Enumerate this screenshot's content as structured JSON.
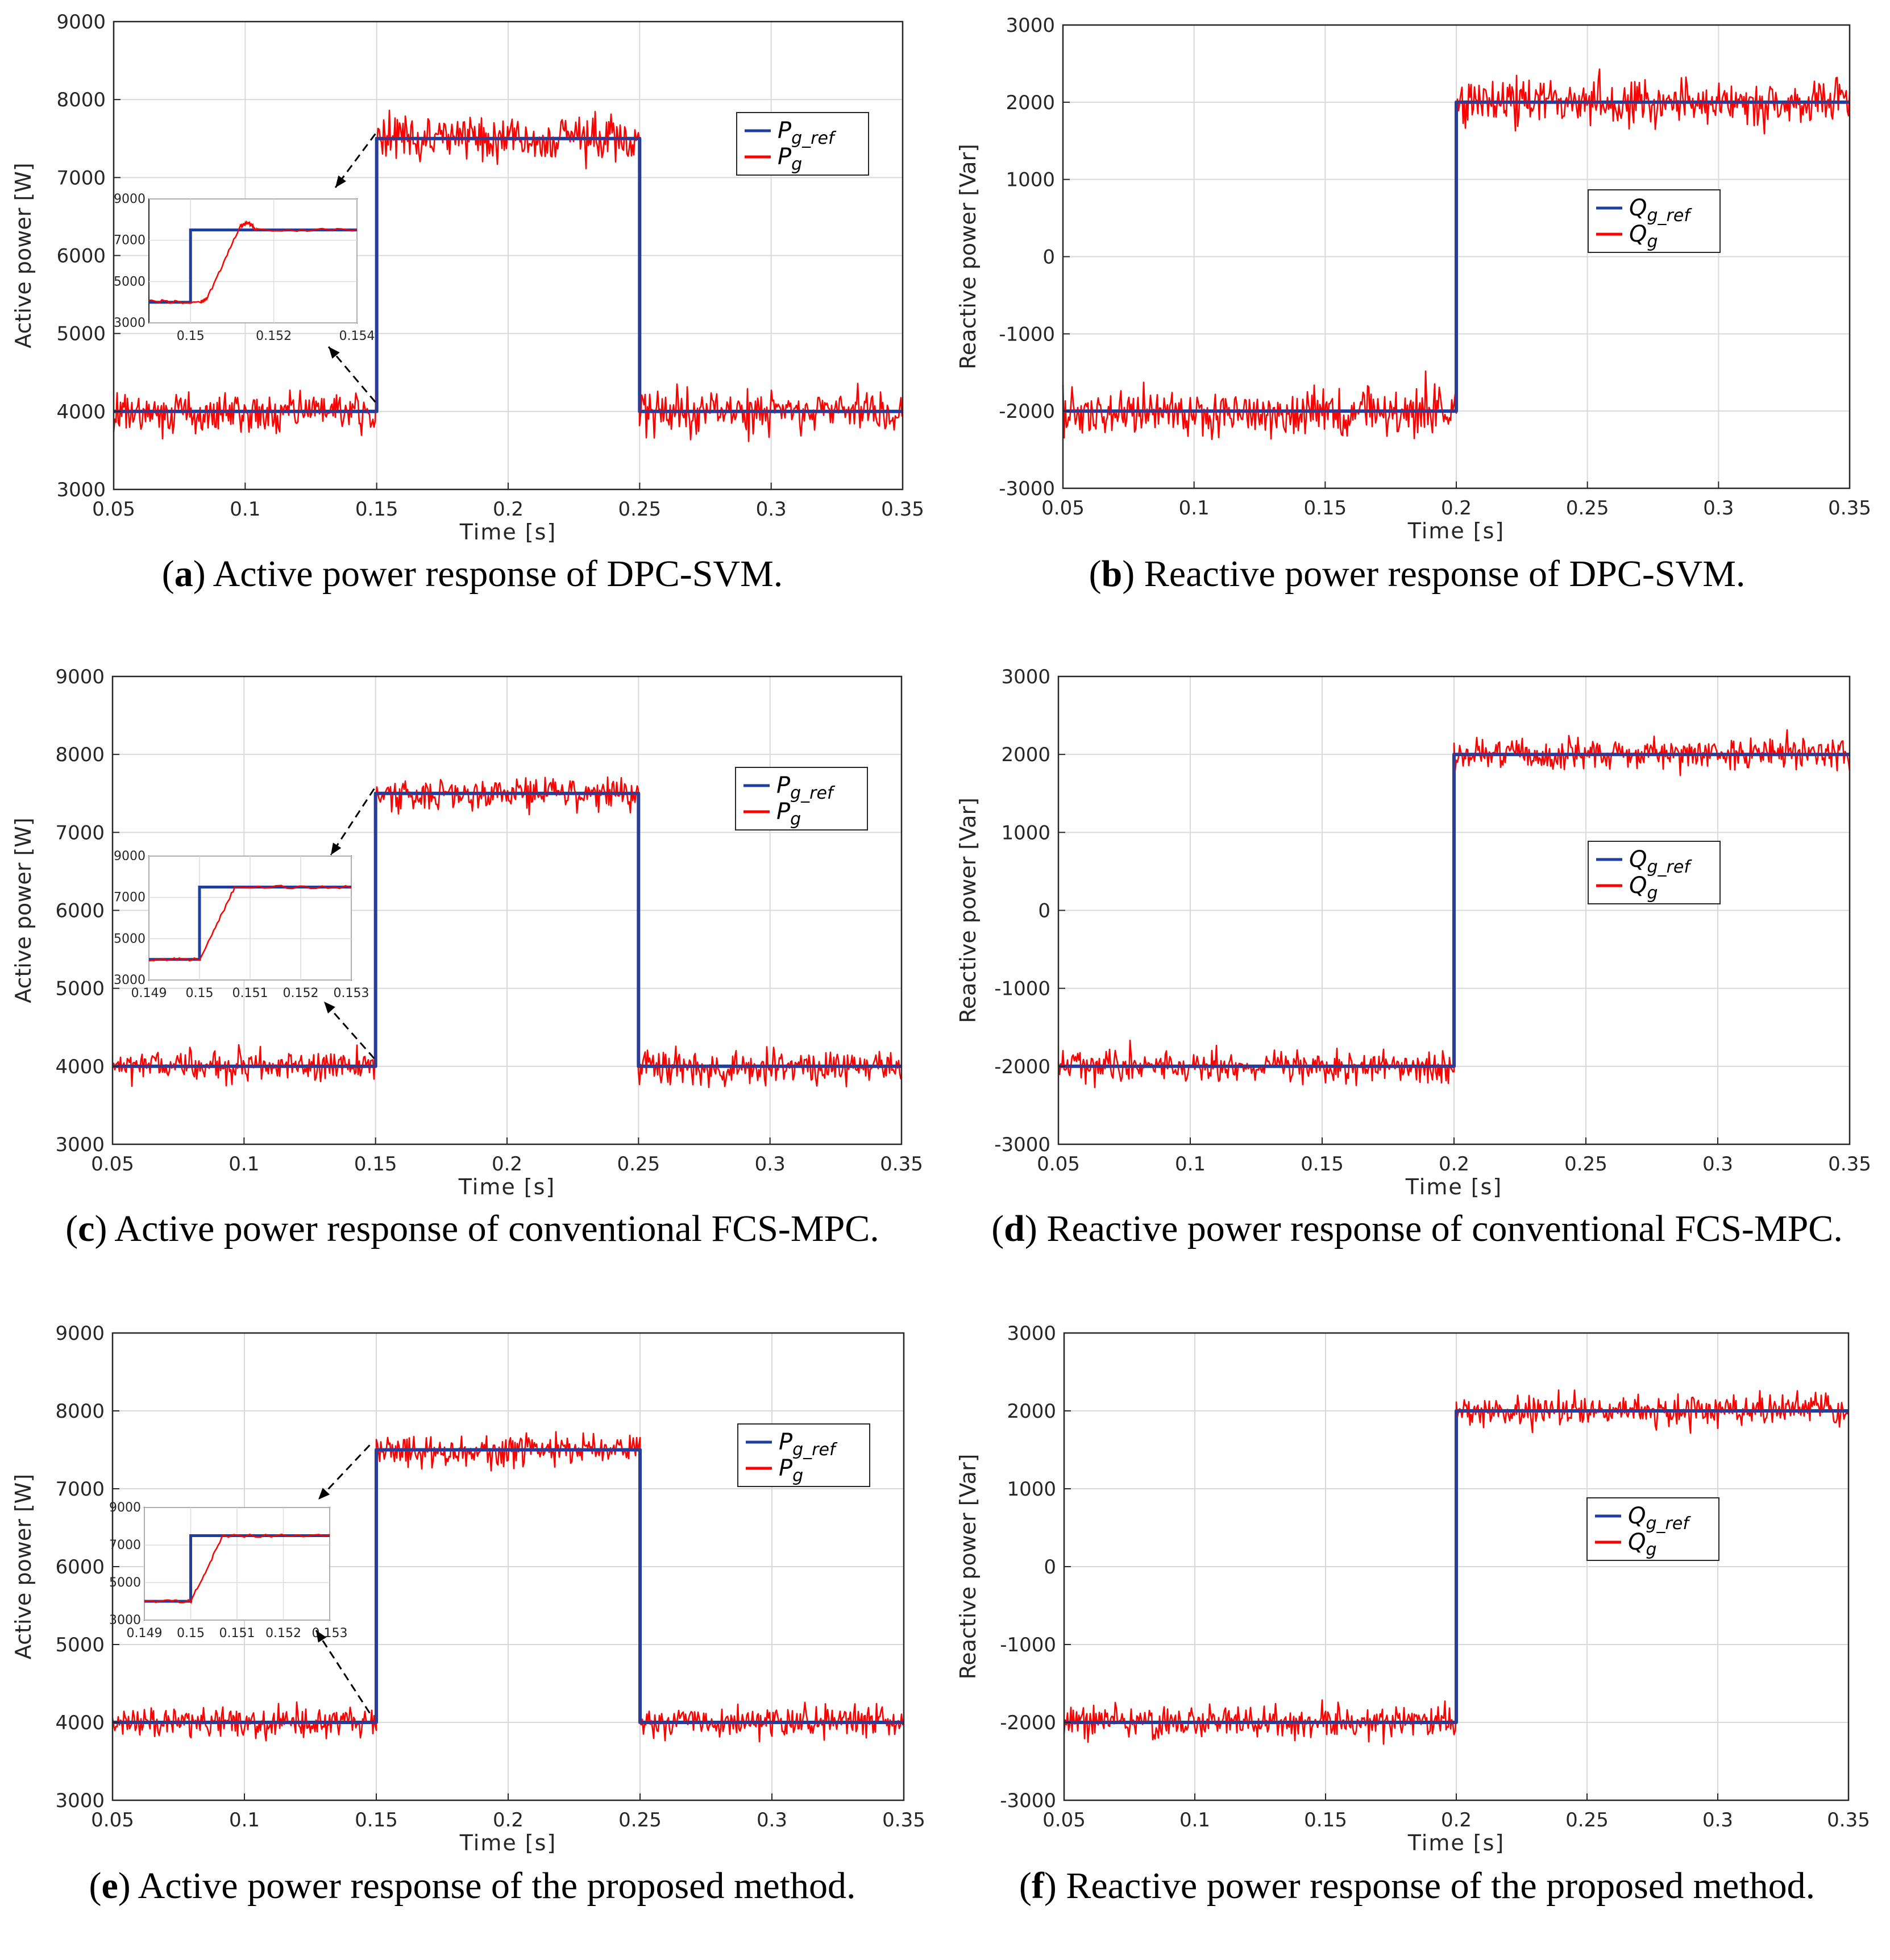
{
  "figure": {
    "panels": [
      {
        "id": "a",
        "letter": "a",
        "caption": "Active power response of DPC-SVM."
      },
      {
        "id": "b",
        "letter": "b",
        "caption": "Reactive power response of DPC-SVM."
      },
      {
        "id": "c",
        "letter": "c",
        "caption": "Active power response of conventional FCS-MPC."
      },
      {
        "id": "d",
        "letter": "d",
        "caption": "Reactive power response of conventional FCS-MPC."
      },
      {
        "id": "e",
        "letter": "e",
        "caption": "Active power response of the proposed method."
      },
      {
        "id": "f",
        "letter": "f",
        "caption": "Reactive power response of the proposed method."
      }
    ]
  },
  "chart_data": [
    {
      "id": "a",
      "type": "line",
      "title": "",
      "xlabel": "Time [s]",
      "ylabel": "Active power [W]",
      "xlim": [
        0.05,
        0.35
      ],
      "ylim": [
        3000,
        9000
      ],
      "grid": true,
      "xticks": [
        "0.05",
        "0.1",
        "0.15",
        "0.2",
        "0.25",
        "0.3",
        "0.35"
      ],
      "yticks": [
        "3000",
        "4000",
        "5000",
        "6000",
        "7000",
        "8000",
        "9000"
      ],
      "legend": {
        "position": "top-right",
        "entries": [
          "Pg_ref",
          "Pg"
        ]
      },
      "series": [
        {
          "name": "Pg_ref",
          "color": "#1f3f9e",
          "kind": "step",
          "x": [
            0.05,
            0.15,
            0.15,
            0.25,
            0.25,
            0.35
          ],
          "y": [
            4000,
            4000,
            7500,
            7500,
            4000,
            4000
          ]
        },
        {
          "name": "Pg",
          "color": "#ff0000",
          "kind": "noisy-step",
          "x": [
            0.05,
            0.15,
            0.25,
            0.35
          ],
          "levels": [
            4000,
            7500,
            4000
          ],
          "noise": 150
        }
      ],
      "inset": {
        "xlim": [
          0.149,
          0.154
        ],
        "ylim": [
          3000,
          9000
        ],
        "xticks": [
          "0.15",
          "0.152",
          "0.154"
        ],
        "yticks": [
          "3000",
          "5000",
          "7000",
          "9000"
        ],
        "ref": {
          "x": [
            0.149,
            0.15,
            0.15,
            0.154
          ],
          "y": [
            4000,
            4000,
            7500,
            7500
          ]
        },
        "actual": {
          "x": [
            0.149,
            0.15025,
            0.1504,
            0.1512,
            0.1514,
            0.1516,
            0.154
          ],
          "y": [
            4050,
            4000,
            4200,
            7700,
            7850,
            7500,
            7500
          ]
        }
      }
    },
    {
      "id": "b",
      "type": "line",
      "title": "",
      "xlabel": "Time [s]",
      "ylabel": "Reactive power [Var]",
      "xlim": [
        0.05,
        0.35
      ],
      "ylim": [
        -3000,
        3000
      ],
      "grid": true,
      "xticks": [
        "0.05",
        "0.1",
        "0.15",
        "0.2",
        "0.25",
        "0.3",
        "0.35"
      ],
      "yticks": [
        "-3000",
        "-2000",
        "-1000",
        "0",
        "1000",
        "2000",
        "3000"
      ],
      "legend": {
        "position": "top-right",
        "entries": [
          "Qg_ref",
          "Qg"
        ]
      },
      "series": [
        {
          "name": "Qg_ref",
          "color": "#1f3f9e",
          "kind": "step",
          "x": [
            0.05,
            0.2,
            0.2,
            0.35
          ],
          "y": [
            -2000,
            -2000,
            2000,
            2000
          ]
        },
        {
          "name": "Qg",
          "color": "#ff0000",
          "kind": "noisy-step",
          "x": [
            0.05,
            0.2,
            0.35
          ],
          "levels": [
            -2000,
            2000
          ],
          "noise": 160
        }
      ]
    },
    {
      "id": "c",
      "type": "line",
      "title": "",
      "xlabel": "Time [s]",
      "ylabel": "Active power [W]",
      "xlim": [
        0.05,
        0.35
      ],
      "ylim": [
        3000,
        9000
      ],
      "grid": true,
      "xticks": [
        "0.05",
        "0.1",
        "0.15",
        "0.2",
        "0.25",
        "0.3",
        "0.35"
      ],
      "yticks": [
        "3000",
        "4000",
        "5000",
        "6000",
        "7000",
        "8000",
        "9000"
      ],
      "legend": {
        "position": "top-right",
        "entries": [
          "Pg_ref",
          "Pg"
        ]
      },
      "series": [
        {
          "name": "Pg_ref",
          "color": "#1f3f9e",
          "kind": "step",
          "x": [
            0.05,
            0.15,
            0.15,
            0.25,
            0.25,
            0.35
          ],
          "y": [
            4000,
            4000,
            7500,
            7500,
            4000,
            4000
          ]
        },
        {
          "name": "Pg",
          "color": "#ff0000",
          "kind": "noisy-step",
          "x": [
            0.05,
            0.15,
            0.25,
            0.35
          ],
          "levels": [
            4000,
            7500,
            4000
          ],
          "noise": 110
        }
      ],
      "inset": {
        "xlim": [
          0.149,
          0.153
        ],
        "ylim": [
          3000,
          9000
        ],
        "xticks": [
          "0.149",
          "0.15",
          "0.151",
          "0.152",
          "0.153"
        ],
        "yticks": [
          "3000",
          "5000",
          "7000",
          "9000"
        ],
        "ref": {
          "x": [
            0.149,
            0.15,
            0.15,
            0.153
          ],
          "y": [
            4000,
            4000,
            7500,
            7500
          ]
        },
        "actual": {
          "x": [
            0.149,
            0.15,
            0.1507,
            0.153
          ],
          "y": [
            4000,
            4000,
            7500,
            7500
          ]
        }
      }
    },
    {
      "id": "d",
      "type": "line",
      "title": "",
      "xlabel": "Time [s]",
      "ylabel": "Reactive power [Var]",
      "xlim": [
        0.05,
        0.35
      ],
      "ylim": [
        -3000,
        3000
      ],
      "grid": true,
      "xticks": [
        "0.05",
        "0.1",
        "0.15",
        "0.2",
        "0.25",
        "0.3",
        "0.35"
      ],
      "yticks": [
        "-3000",
        "-2000",
        "-1000",
        "0",
        "1000",
        "2000",
        "3000"
      ],
      "legend": {
        "position": "top-right",
        "entries": [
          "Qg_ref",
          "Qg"
        ]
      },
      "series": [
        {
          "name": "Qg_ref",
          "color": "#1f3f9e",
          "kind": "step",
          "x": [
            0.05,
            0.2,
            0.2,
            0.35
          ],
          "y": [
            -2000,
            -2000,
            2000,
            2000
          ]
        },
        {
          "name": "Qg",
          "color": "#ff0000",
          "kind": "noisy-step",
          "x": [
            0.05,
            0.2,
            0.35
          ],
          "levels": [
            -2000,
            2000
          ],
          "noise": 110
        }
      ]
    },
    {
      "id": "e",
      "type": "line",
      "title": "",
      "xlabel": "Time [s]",
      "ylabel": "Active power [W]",
      "xlim": [
        0.05,
        0.35
      ],
      "ylim": [
        3000,
        9000
      ],
      "grid": true,
      "xticks": [
        "0.05",
        "0.1",
        "0.15",
        "0.2",
        "0.25",
        "0.3",
        "0.35"
      ],
      "yticks": [
        "3000",
        "4000",
        "5000",
        "6000",
        "7000",
        "8000",
        "9000"
      ],
      "legend": {
        "position": "top-right",
        "entries": [
          "Pg_ref",
          "Pg"
        ]
      },
      "series": [
        {
          "name": "Pg_ref",
          "color": "#1f3f9e",
          "kind": "step",
          "x": [
            0.05,
            0.15,
            0.15,
            0.25,
            0.25,
            0.35
          ],
          "y": [
            4000,
            4000,
            7500,
            7500,
            4000,
            4000
          ]
        },
        {
          "name": "Pg",
          "color": "#ff0000",
          "kind": "noisy-step",
          "x": [
            0.05,
            0.15,
            0.25,
            0.35
          ],
          "levels": [
            4000,
            7500,
            4000
          ],
          "noise": 110
        }
      ],
      "inset": {
        "xlim": [
          0.149,
          0.153
        ],
        "ylim": [
          3000,
          9000
        ],
        "xticks": [
          "0.149",
          "0.15",
          "0.151",
          "0.152",
          "0.153"
        ],
        "yticks": [
          "3000",
          "5000",
          "7000",
          "9000"
        ],
        "ref": {
          "x": [
            0.149,
            0.15,
            0.15,
            0.153
          ],
          "y": [
            4000,
            4000,
            7500,
            7500
          ]
        },
        "actual": {
          "x": [
            0.149,
            0.15,
            0.1507,
            0.153
          ],
          "y": [
            4000,
            4000,
            7500,
            7500
          ]
        }
      }
    },
    {
      "id": "f",
      "type": "line",
      "title": "",
      "xlabel": "Time [s]",
      "ylabel": "Reactive power [Var]",
      "xlim": [
        0.05,
        0.35
      ],
      "ylim": [
        -3000,
        3000
      ],
      "grid": true,
      "xticks": [
        "0.05",
        "0.1",
        "0.15",
        "0.2",
        "0.25",
        "0.3",
        "0.35"
      ],
      "yticks": [
        "-3000",
        "-2000",
        "-1000",
        "0",
        "1000",
        "2000",
        "3000"
      ],
      "legend": {
        "position": "top-right",
        "entries": [
          "Qg_ref",
          "Qg"
        ]
      },
      "series": [
        {
          "name": "Qg_ref",
          "color": "#1f3f9e",
          "kind": "step",
          "x": [
            0.05,
            0.2,
            0.2,
            0.35
          ],
          "y": [
            -2000,
            -2000,
            2000,
            2000
          ]
        },
        {
          "name": "Qg",
          "color": "#ff0000",
          "kind": "noisy-step",
          "x": [
            0.05,
            0.2,
            0.35
          ],
          "levels": [
            -2000,
            2000
          ],
          "noise": 110
        }
      ]
    }
  ]
}
